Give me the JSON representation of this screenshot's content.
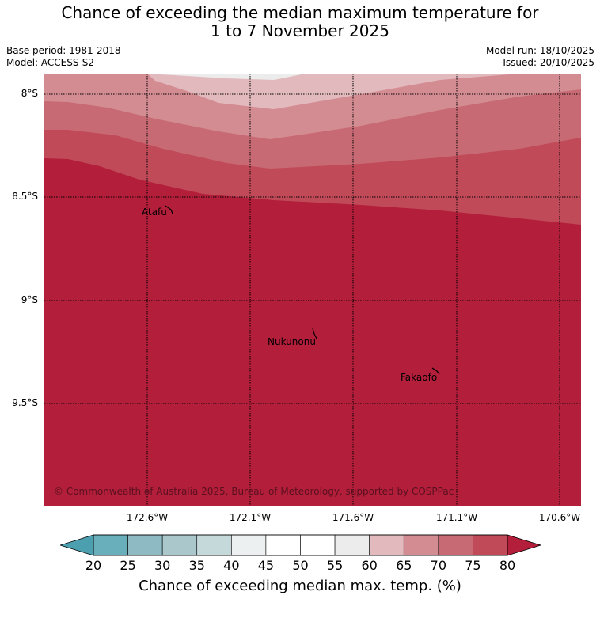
{
  "title_line1": "Chance of exceeding the median maximum temperature for",
  "title_line2": "1 to 7 November 2025",
  "base_period": "Base period: 1981-2018",
  "model": "Model: ACCESS-S2",
  "model_run": "Model run: 18/10/2025",
  "issued": "Issued: 20/10/2025",
  "lat_labels": [
    "8°S",
    "8.5°S",
    "9°S",
    "9.5°S"
  ],
  "lon_labels": [
    "172.6°W",
    "172.1°W",
    "171.6°W",
    "171.1°W",
    "170.6°W"
  ],
  "places": [
    "Atafu",
    "Nukunonu",
    "Fakaofo"
  ],
  "copyright": "© Commonwealth of Australia 2025, Bureau of Meteorology, supported by COSPPac",
  "colorbar": {
    "ticks": [
      "20",
      "25",
      "30",
      "35",
      "40",
      "45",
      "50",
      "55",
      "60",
      "65",
      "70",
      "75",
      "80"
    ],
    "colors": [
      "#68aebb",
      "#8dbac3",
      "#aac8cc",
      "#c5d9db",
      "#ecf0f1",
      "#ffffff",
      "#ffffff",
      "#ececec",
      "#e2b9bd",
      "#d48c93",
      "#c86a73",
      "#c04a58",
      "#b31e3a"
    ],
    "low_color": "#4c9faf",
    "high_color": "#b31e3a",
    "label": "Chance of exceeding median max. temp. (%)"
  }
}
